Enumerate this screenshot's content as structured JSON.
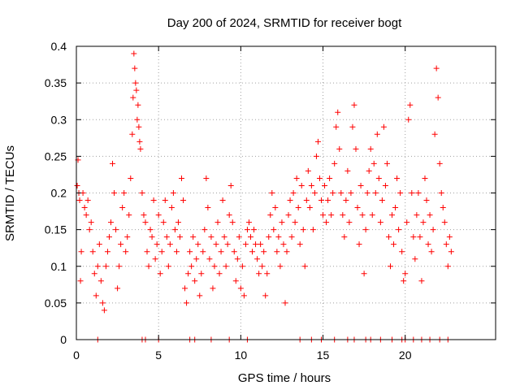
{
  "chart_data": {
    "type": "scatter",
    "title": "Day 200 of 2024, SRMTID for receiver bogt",
    "xlabel": "GPS time / hours",
    "ylabel": "SRMTID / TECUs",
    "xlim": [
      0,
      25.5
    ],
    "ylim": [
      0,
      0.4
    ],
    "xticks": [
      0,
      5,
      10,
      15,
      20
    ],
    "xtick_labels": [
      "0",
      "5",
      "10",
      "15",
      "20"
    ],
    "yticks": [
      0,
      0.05,
      0.1,
      0.15,
      0.2,
      0.25,
      0.3,
      0.35,
      0.4
    ],
    "ytick_labels": [
      "0",
      "0.05",
      "0.1",
      "0.15",
      "0.2",
      "0.25",
      "0.3",
      "0.35",
      "0.4"
    ],
    "grid": true,
    "marker": "+",
    "color": "#ff0000",
    "series": [
      {
        "name": "SRMTID",
        "points": [
          [
            0.05,
            0.21
          ],
          [
            0.1,
            0.245
          ],
          [
            0.15,
            0.2
          ],
          [
            0.2,
            0.19
          ],
          [
            0.25,
            0.08
          ],
          [
            0.3,
            0.12
          ],
          [
            0.4,
            0.2
          ],
          [
            0.5,
            0.18
          ],
          [
            0.6,
            0.17
          ],
          [
            0.7,
            0.19
          ],
          [
            0.8,
            0.15
          ],
          [
            0.9,
            0.16
          ],
          [
            1.0,
            0.12
          ],
          [
            1.1,
            0.09
          ],
          [
            1.2,
            0.06
          ],
          [
            1.3,
            0.1
          ],
          [
            1.4,
            0.13
          ],
          [
            1.5,
            0.08
          ],
          [
            1.6,
            0.05
          ],
          [
            1.7,
            0.04
          ],
          [
            1.8,
            0.1
          ],
          [
            1.9,
            0.12
          ],
          [
            2.0,
            0.14
          ],
          [
            2.1,
            0.16
          ],
          [
            2.2,
            0.24
          ],
          [
            2.3,
            0.2
          ],
          [
            2.4,
            0.15
          ],
          [
            2.5,
            0.07
          ],
          [
            2.6,
            0.1
          ],
          [
            2.7,
            0.13
          ],
          [
            2.8,
            0.18
          ],
          [
            2.9,
            0.2
          ],
          [
            3.0,
            0.12
          ],
          [
            3.1,
            0.14
          ],
          [
            3.2,
            0.17
          ],
          [
            3.3,
            0.22
          ],
          [
            3.4,
            0.28
          ],
          [
            3.45,
            0.33
          ],
          [
            3.5,
            0.39
          ],
          [
            3.55,
            0.37
          ],
          [
            3.6,
            0.35
          ],
          [
            3.65,
            0.34
          ],
          [
            3.7,
            0.3
          ],
          [
            3.75,
            0.32
          ],
          [
            3.8,
            0.29
          ],
          [
            3.85,
            0.27
          ],
          [
            3.9,
            0.26
          ],
          [
            4.0,
            0.2
          ],
          [
            4.1,
            0.17
          ],
          [
            4.2,
            0.16
          ],
          [
            4.3,
            0.12
          ],
          [
            4.4,
            0.1
          ],
          [
            4.5,
            0.15
          ],
          [
            4.6,
            0.14
          ],
          [
            4.7,
            0.19
          ],
          [
            4.8,
            0.11
          ],
          [
            4.9,
            0.13
          ],
          [
            5.0,
            0.17
          ],
          [
            5.1,
            0.09
          ],
          [
            5.2,
            0.12
          ],
          [
            5.3,
            0.16
          ],
          [
            5.4,
            0.19
          ],
          [
            5.5,
            0.14
          ],
          [
            5.6,
            0.1
          ],
          [
            5.7,
            0.13
          ],
          [
            5.8,
            0.18
          ],
          [
            5.9,
            0.2
          ],
          [
            6.0,
            0.15
          ],
          [
            6.1,
            0.12
          ],
          [
            6.2,
            0.16
          ],
          [
            6.3,
            0.14
          ],
          [
            6.4,
            0.22
          ],
          [
            6.5,
            0.19
          ],
          [
            6.6,
            0.07
          ],
          [
            6.7,
            0.05
          ],
          [
            6.8,
            0.09
          ],
          [
            6.9,
            0.12
          ],
          [
            7.0,
            0.1
          ],
          [
            7.1,
            0.14
          ],
          [
            7.2,
            0.08
          ],
          [
            7.3,
            0.11
          ],
          [
            7.4,
            0.13
          ],
          [
            7.5,
            0.06
          ],
          [
            7.6,
            0.09
          ],
          [
            7.7,
            0.12
          ],
          [
            7.8,
            0.15
          ],
          [
            7.9,
            0.22
          ],
          [
            8.0,
            0.18
          ],
          [
            8.1,
            0.11
          ],
          [
            8.2,
            0.14
          ],
          [
            8.3,
            0.07
          ],
          [
            8.4,
            0.1
          ],
          [
            8.5,
            0.13
          ],
          [
            8.6,
            0.16
          ],
          [
            8.7,
            0.09
          ],
          [
            8.8,
            0.12
          ],
          [
            8.9,
            0.19
          ],
          [
            9.0,
            0.14
          ],
          [
            9.1,
            0.1
          ],
          [
            9.2,
            0.13
          ],
          [
            9.3,
            0.17
          ],
          [
            9.4,
            0.21
          ],
          [
            9.5,
            0.16
          ],
          [
            9.6,
            0.12
          ],
          [
            9.7,
            0.08
          ],
          [
            9.8,
            0.11
          ],
          [
            9.9,
            0.14
          ],
          [
            10.0,
            0.07
          ],
          [
            10.1,
            0.1
          ],
          [
            10.2,
            0.06
          ],
          [
            10.3,
            0.13
          ],
          [
            10.4,
            0.15
          ],
          [
            10.5,
            0.16
          ],
          [
            10.6,
            0.14
          ],
          [
            10.7,
            0.12
          ],
          [
            10.8,
            0.15
          ],
          [
            10.9,
            0.13
          ],
          [
            11.0,
            0.11
          ],
          [
            11.1,
            0.09
          ],
          [
            11.2,
            0.13
          ],
          [
            11.3,
            0.1
          ],
          [
            11.4,
            0.12
          ],
          [
            11.5,
            0.06
          ],
          [
            11.6,
            0.09
          ],
          [
            11.7,
            0.14
          ],
          [
            11.8,
            0.17
          ],
          [
            11.9,
            0.2
          ],
          [
            12.0,
            0.15
          ],
          [
            12.1,
            0.18
          ],
          [
            12.2,
            0.12
          ],
          [
            12.3,
            0.14
          ],
          [
            12.4,
            0.1
          ],
          [
            12.5,
            0.16
          ],
          [
            12.6,
            0.13
          ],
          [
            12.7,
            0.05
          ],
          [
            12.8,
            0.12
          ],
          [
            12.9,
            0.17
          ],
          [
            13.0,
            0.19
          ],
          [
            13.1,
            0.14
          ],
          [
            13.2,
            0.2
          ],
          [
            13.3,
            0.16
          ],
          [
            13.4,
            0.22
          ],
          [
            13.5,
            0.18
          ],
          [
            13.6,
            0.13
          ],
          [
            13.7,
            0.21
          ],
          [
            13.8,
            0.15
          ],
          [
            13.9,
            0.1
          ],
          [
            14.0,
            0.19
          ],
          [
            14.1,
            0.23
          ],
          [
            14.2,
            0.18
          ],
          [
            14.3,
            0.21
          ],
          [
            14.4,
            0.15
          ],
          [
            14.5,
            0.2
          ],
          [
            14.6,
            0.25
          ],
          [
            14.7,
            0.27
          ],
          [
            14.8,
            0.22
          ],
          [
            14.9,
            0.19
          ],
          [
            15.0,
            0.17
          ],
          [
            15.1,
            0.21
          ],
          [
            15.2,
            0.16
          ],
          [
            15.3,
            0.19
          ],
          [
            15.4,
            0.22
          ],
          [
            15.5,
            0.17
          ],
          [
            15.6,
            0.2
          ],
          [
            15.7,
            0.24
          ],
          [
            15.8,
            0.29
          ],
          [
            15.9,
            0.31
          ],
          [
            16.0,
            0.26
          ],
          [
            16.1,
            0.2
          ],
          [
            16.2,
            0.17
          ],
          [
            16.3,
            0.14
          ],
          [
            16.4,
            0.19
          ],
          [
            16.5,
            0.23
          ],
          [
            16.6,
            0.16
          ],
          [
            16.7,
            0.2
          ],
          [
            16.8,
            0.29
          ],
          [
            16.9,
            0.32
          ],
          [
            17.0,
            0.26
          ],
          [
            17.1,
            0.18
          ],
          [
            17.2,
            0.13
          ],
          [
            17.3,
            0.21
          ],
          [
            17.4,
            0.17
          ],
          [
            17.5,
            0.09
          ],
          [
            17.6,
            0.15
          ],
          [
            17.7,
            0.2
          ],
          [
            17.8,
            0.23
          ],
          [
            17.9,
            0.26
          ],
          [
            18.0,
            0.17
          ],
          [
            18.1,
            0.24
          ],
          [
            18.2,
            0.2
          ],
          [
            18.3,
            0.28
          ],
          [
            18.4,
            0.22
          ],
          [
            18.5,
            0.16
          ],
          [
            18.6,
            0.19
          ],
          [
            18.7,
            0.29
          ],
          [
            18.8,
            0.21
          ],
          [
            18.9,
            0.24
          ],
          [
            19.0,
            0.14
          ],
          [
            19.1,
            0.1
          ],
          [
            19.2,
            0.17
          ],
          [
            19.3,
            0.13
          ],
          [
            19.4,
            0.18
          ],
          [
            19.5,
            0.22
          ],
          [
            19.6,
            0.15
          ],
          [
            19.7,
            0.2
          ],
          [
            19.8,
            0.12
          ],
          [
            19.9,
            0.08
          ],
          [
            20.0,
            0.09
          ],
          [
            20.1,
            0.16
          ],
          [
            20.2,
            0.3
          ],
          [
            20.3,
            0.32
          ],
          [
            20.4,
            0.2
          ],
          [
            20.5,
            0.14
          ],
          [
            20.6,
            0.11
          ],
          [
            20.7,
            0.17
          ],
          [
            20.8,
            0.2
          ],
          [
            20.9,
            0.14
          ],
          [
            21.0,
            0.08
          ],
          [
            21.1,
            0.16
          ],
          [
            21.2,
            0.22
          ],
          [
            21.3,
            0.19
          ],
          [
            21.4,
            0.13
          ],
          [
            21.5,
            0.17
          ],
          [
            21.6,
            0.12
          ],
          [
            21.7,
            0.15
          ],
          [
            21.8,
            0.28
          ],
          [
            21.9,
            0.37
          ],
          [
            22.0,
            0.33
          ],
          [
            22.1,
            0.24
          ],
          [
            22.2,
            0.2
          ],
          [
            22.3,
            0.18
          ],
          [
            22.4,
            0.16
          ],
          [
            22.5,
            0.13
          ],
          [
            22.6,
            0.1
          ],
          [
            22.7,
            0.14
          ],
          [
            22.8,
            0.12
          ],
          [
            1.3,
            0
          ],
          [
            4.0,
            0
          ],
          [
            4.2,
            0
          ],
          [
            5.0,
            0
          ],
          [
            6.9,
            0
          ],
          [
            7.2,
            0
          ],
          [
            8.2,
            0
          ],
          [
            9.3,
            0
          ],
          [
            10.4,
            0
          ],
          [
            13.6,
            0
          ],
          [
            14.3,
            0
          ],
          [
            14.9,
            0
          ],
          [
            15.7,
            0
          ],
          [
            16.5,
            0
          ],
          [
            16.9,
            0
          ],
          [
            17.6,
            0
          ],
          [
            17.9,
            0
          ],
          [
            18.5,
            0
          ],
          [
            19.2,
            0
          ],
          [
            19.8,
            0
          ],
          [
            20.0,
            0
          ],
          [
            20.5,
            0
          ],
          [
            21.0,
            0
          ],
          [
            21.5,
            0
          ],
          [
            22.1,
            0
          ],
          [
            22.6,
            0
          ]
        ]
      }
    ]
  }
}
